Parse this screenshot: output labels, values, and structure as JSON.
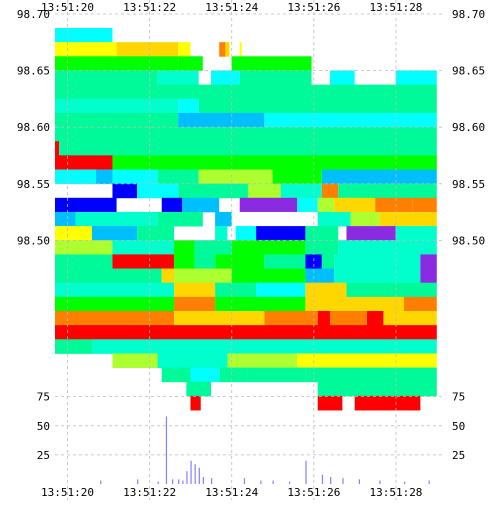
{
  "chart_data": [
    {
      "type": "heatmap",
      "title": "",
      "xlabel": "",
      "ylabel": "",
      "x_ticks": [
        "13:51:20",
        "13:51:22",
        "13:51:24",
        "13:51:26",
        "13:51:28"
      ],
      "y_ticks": [
        "98.70",
        "98.65",
        "98.60",
        "98.55",
        "98.50"
      ],
      "xlim": [
        19.5,
        29.0
      ],
      "ylim": [
        98.45,
        98.7
      ],
      "grid": true,
      "value_scale_colors": [
        "#ff0000",
        "#ff7f00",
        "#ffd700",
        "#ffff00",
        "#adff2f",
        "#00ff00",
        "#00fa9a",
        "#00ffcc",
        "#00ffff",
        "#00bfff",
        "#0000ff",
        "#8a2be2"
      ],
      "price_levels": [
        98.695,
        98.685,
        98.675,
        98.665,
        98.655,
        98.645,
        98.635,
        98.625,
        98.615,
        98.605,
        98.595,
        98.585,
        98.575,
        98.565,
        98.555,
        98.545,
        98.535,
        98.525,
        98.515,
        98.505,
        98.495,
        98.485,
        98.475,
        98.465,
        98.455
      ],
      "rows": [
        {
          "y": 98.695,
          "cells": [
            {
              "x0": 19.5,
              "x1": 20.9,
              "color": "#00ffff"
            }
          ]
        },
        {
          "y": 98.685,
          "cells": [
            {
              "x0": 19.5,
              "x1": 21.0,
              "color": "#ffff00"
            },
            {
              "x0": 21.0,
              "x1": 22.5,
              "color": "#ffd700"
            },
            {
              "x0": 22.5,
              "x1": 22.8,
              "color": "#ffff00"
            },
            {
              "x0": 23.5,
              "x1": 23.65,
              "color": "#ff7f00"
            },
            {
              "x0": 23.65,
              "x1": 23.75,
              "color": "#ffd700"
            },
            {
              "x0": 24.0,
              "x1": 24.05,
              "color": "#ffff00"
            }
          ]
        },
        {
          "y": 98.675,
          "cells": [
            {
              "x0": 19.5,
              "x1": 22.5,
              "color": "#00ff00"
            },
            {
              "x0": 22.5,
              "x1": 23.1,
              "color": "#00ff00"
            },
            {
              "x0": 23.8,
              "x1": 25.75,
              "color": "#00ff00"
            }
          ]
        },
        {
          "y": 98.665,
          "cells": [
            {
              "x0": 19.5,
              "x1": 22.0,
              "color": "#00fa9a"
            },
            {
              "x0": 22.0,
              "x1": 23.0,
              "color": "#00ffcc"
            },
            {
              "x0": 23.3,
              "x1": 24.0,
              "color": "#00ffff"
            },
            {
              "x0": 24.0,
              "x1": 25.75,
              "color": "#00fa9a"
            },
            {
              "x0": 26.2,
              "x1": 26.8,
              "color": "#00ffff"
            },
            {
              "x0": 27.8,
              "x1": 28.8,
              "color": "#00ffff"
            }
          ]
        },
        {
          "y": 98.655,
          "cells": [
            {
              "x0": 19.5,
              "x1": 28.8,
              "color": "#00fa9a"
            }
          ]
        },
        {
          "y": 98.645,
          "cells": [
            {
              "x0": 19.5,
              "x1": 22.5,
              "color": "#00ffcc"
            },
            {
              "x0": 22.5,
              "x1": 23.0,
              "color": "#00ffff"
            },
            {
              "x0": 23.0,
              "x1": 28.8,
              "color": "#00fa9a"
            }
          ]
        },
        {
          "y": 98.635,
          "cells": [
            {
              "x0": 19.5,
              "x1": 22.5,
              "color": "#00fa9a"
            },
            {
              "x0": 22.5,
              "x1": 24.6,
              "color": "#00bfff"
            },
            {
              "x0": 24.6,
              "x1": 28.8,
              "color": "#00ffff"
            }
          ]
        },
        {
          "y": 98.625,
          "cells": [
            {
              "x0": 19.5,
              "x1": 28.8,
              "color": "#00fa9a"
            }
          ]
        },
        {
          "y": 98.615,
          "cells": [
            {
              "x0": 19.5,
              "x1": 19.6,
              "color": "#ff0000"
            },
            {
              "x0": 19.6,
              "x1": 28.8,
              "color": "#00fa9a"
            }
          ]
        },
        {
          "y": 98.605,
          "cells": [
            {
              "x0": 19.5,
              "x1": 20.9,
              "color": "#ff0000"
            },
            {
              "x0": 20.9,
              "x1": 28.8,
              "color": "#00ff00"
            }
          ]
        },
        {
          "y": 98.595,
          "cells": [
            {
              "x0": 19.5,
              "x1": 20.5,
              "color": "#00ffff"
            },
            {
              "x0": 20.5,
              "x1": 20.9,
              "color": "#00bfff"
            },
            {
              "x0": 20.9,
              "x1": 22.0,
              "color": "#00ffff"
            },
            {
              "x0": 22.0,
              "x1": 23.0,
              "color": "#00fa9a"
            },
            {
              "x0": 23.0,
              "x1": 24.8,
              "color": "#adff2f"
            },
            {
              "x0": 24.8,
              "x1": 26.0,
              "color": "#00ff00"
            },
            {
              "x0": 26.0,
              "x1": 28.8,
              "color": "#00bfff"
            }
          ]
        },
        {
          "y": 98.585,
          "cells": [
            {
              "x0": 20.9,
              "x1": 21.5,
              "color": "#0000ff"
            },
            {
              "x0": 21.5,
              "x1": 22.5,
              "color": "#00ffff"
            },
            {
              "x0": 22.5,
              "x1": 24.2,
              "color": "#00fa9a"
            },
            {
              "x0": 24.2,
              "x1": 25.0,
              "color": "#adff2f"
            },
            {
              "x0": 25.0,
              "x1": 26.0,
              "color": "#00ffcc"
            },
            {
              "x0": 26.0,
              "x1": 26.4,
              "color": "#ff7f00"
            },
            {
              "x0": 26.4,
              "x1": 28.8,
              "color": "#00fa9a"
            }
          ]
        },
        {
          "y": 98.575,
          "cells": [
            {
              "x0": 19.5,
              "x1": 21.0,
              "color": "#0000ff"
            },
            {
              "x0": 22.1,
              "x1": 22.6,
              "color": "#0000ff"
            },
            {
              "x0": 22.6,
              "x1": 23.5,
              "color": "#00bfff"
            },
            {
              "x0": 24.0,
              "x1": 25.4,
              "color": "#8a2be2"
            },
            {
              "x0": 25.4,
              "x1": 25.9,
              "color": "#00ffff"
            },
            {
              "x0": 25.9,
              "x1": 26.3,
              "color": "#adff2f"
            },
            {
              "x0": 26.3,
              "x1": 27.3,
              "color": "#ffd700"
            },
            {
              "x0": 27.3,
              "x1": 28.2,
              "color": "#ff7f00"
            },
            {
              "x0": 28.2,
              "x1": 28.8,
              "color": "#ff7f00"
            }
          ]
        },
        {
          "y": 98.565,
          "cells": [
            {
              "x0": 19.5,
              "x1": 20.0,
              "color": "#00bfff"
            },
            {
              "x0": 20.0,
              "x1": 22.0,
              "color": "#00ffcc"
            },
            {
              "x0": 22.0,
              "x1": 23.1,
              "color": "#00fa9a"
            },
            {
              "x0": 23.4,
              "x1": 23.8,
              "color": "#00bfff"
            },
            {
              "x0": 24.0,
              "x1": 25.9,
              "color": "#ffffff"
            },
            {
              "x0": 25.9,
              "x1": 26.7,
              "color": "#00ffcc"
            },
            {
              "x0": 26.7,
              "x1": 27.4,
              "color": "#adff2f"
            },
            {
              "x0": 27.4,
              "x1": 28.8,
              "color": "#ffd700"
            }
          ]
        },
        {
          "y": 98.555,
          "cells": [
            {
              "x0": 19.5,
              "x1": 20.4,
              "color": "#ffff00"
            },
            {
              "x0": 20.4,
              "x1": 21.5,
              "color": "#00bfff"
            },
            {
              "x0": 21.5,
              "x1": 22.4,
              "color": "#00fa9a"
            },
            {
              "x0": 23.4,
              "x1": 23.7,
              "color": "#00ffcc"
            },
            {
              "x0": 23.9,
              "x1": 24.4,
              "color": "#00ffff"
            },
            {
              "x0": 24.4,
              "x1": 25.6,
              "color": "#0000ff"
            },
            {
              "x0": 25.6,
              "x1": 26.4,
              "color": "#00fa9a"
            },
            {
              "x0": 26.6,
              "x1": 27.8,
              "color": "#8a2be2"
            },
            {
              "x0": 27.8,
              "x1": 28.8,
              "color": "#00ffcc"
            }
          ]
        },
        {
          "y": 98.545,
          "cells": [
            {
              "x0": 19.5,
              "x1": 20.9,
              "color": "#adff2f"
            },
            {
              "x0": 20.9,
              "x1": 22.4,
              "color": "#00ffcc"
            },
            {
              "x0": 22.4,
              "x1": 22.9,
              "color": "#00ff00"
            },
            {
              "x0": 22.9,
              "x1": 23.8,
              "color": "#00fa9a"
            },
            {
              "x0": 23.8,
              "x1": 25.6,
              "color": "#00ff00"
            },
            {
              "x0": 25.6,
              "x1": 26.4,
              "color": "#00fa9a"
            },
            {
              "x0": 26.4,
              "x1": 28.8,
              "color": "#00ffcc"
            }
          ]
        },
        {
          "y": 98.535,
          "cells": [
            {
              "x0": 19.5,
              "x1": 20.9,
              "color": "#00fa9a"
            },
            {
              "x0": 20.9,
              "x1": 22.4,
              "color": "#ff0000"
            },
            {
              "x0": 22.4,
              "x1": 22.9,
              "color": "#00ff00"
            },
            {
              "x0": 22.9,
              "x1": 23.4,
              "color": "#00fa9a"
            },
            {
              "x0": 23.4,
              "x1": 24.6,
              "color": "#00ff00"
            },
            {
              "x0": 24.6,
              "x1": 25.6,
              "color": "#00fa9a"
            },
            {
              "x0": 25.6,
              "x1": 26.0,
              "color": "#0000ff"
            },
            {
              "x0": 26.0,
              "x1": 26.3,
              "color": "#00fa9a"
            },
            {
              "x0": 26.3,
              "x1": 28.4,
              "color": "#00ffcc"
            },
            {
              "x0": 28.4,
              "x1": 28.8,
              "color": "#8a2be2"
            }
          ]
        },
        {
          "y": 98.525,
          "cells": [
            {
              "x0": 19.5,
              "x1": 22.1,
              "color": "#00fa9a"
            },
            {
              "x0": 22.1,
              "x1": 22.4,
              "color": "#ffd700"
            },
            {
              "x0": 22.4,
              "x1": 23.8,
              "color": "#adff2f"
            },
            {
              "x0": 23.8,
              "x1": 25.6,
              "color": "#00ff00"
            },
            {
              "x0": 25.6,
              "x1": 26.3,
              "color": "#00bfff"
            },
            {
              "x0": 26.3,
              "x1": 28.4,
              "color": "#00ffcc"
            },
            {
              "x0": 28.4,
              "x1": 28.8,
              "color": "#8a2be2"
            }
          ]
        },
        {
          "y": 98.515,
          "cells": [
            {
              "x0": 19.5,
              "x1": 22.4,
              "color": "#00ffcc"
            },
            {
              "x0": 22.4,
              "x1": 23.4,
              "color": "#ffd700"
            },
            {
              "x0": 23.4,
              "x1": 24.4,
              "color": "#00fa9a"
            },
            {
              "x0": 24.4,
              "x1": 25.6,
              "color": "#00ffff"
            },
            {
              "x0": 25.6,
              "x1": 26.6,
              "color": "#ffd700"
            },
            {
              "x0": 26.6,
              "x1": 28.8,
              "color": "#00fa9a"
            }
          ]
        },
        {
          "y": 98.505,
          "cells": [
            {
              "x0": 19.5,
              "x1": 22.4,
              "color": "#00ff00"
            },
            {
              "x0": 22.4,
              "x1": 23.4,
              "color": "#ff7f00"
            },
            {
              "x0": 23.4,
              "x1": 25.6,
              "color": "#00ff00"
            },
            {
              "x0": 25.6,
              "x1": 28.0,
              "color": "#ffd700"
            },
            {
              "x0": 28.0,
              "x1": 28.8,
              "color": "#ff7f00"
            }
          ]
        },
        {
          "y": 98.495,
          "cells": [
            {
              "x0": 19.5,
              "x1": 22.4,
              "color": "#ff7f00"
            },
            {
              "x0": 22.4,
              "x1": 24.6,
              "color": "#ffd700"
            },
            {
              "x0": 24.6,
              "x1": 25.9,
              "color": "#ff7f00"
            },
            {
              "x0": 25.9,
              "x1": 26.2,
              "color": "#ff0000"
            },
            {
              "x0": 26.2,
              "x1": 27.1,
              "color": "#ff7f00"
            },
            {
              "x0": 27.1,
              "x1": 27.5,
              "color": "#ff0000"
            },
            {
              "x0": 27.5,
              "x1": 28.8,
              "color": "#ffd700"
            }
          ]
        },
        {
          "y": 98.485,
          "cells": [
            {
              "x0": 19.5,
              "x1": 28.8,
              "color": "#ff0000"
            }
          ]
        },
        {
          "y": 98.475,
          "cells": [
            {
              "x0": 19.5,
              "x1": 20.4,
              "color": "#00fa9a"
            },
            {
              "x0": 20.4,
              "x1": 28.8,
              "color": "#00ffcc"
            }
          ]
        },
        {
          "y": 98.465,
          "cells": [
            {
              "x0": 20.9,
              "x1": 22.0,
              "color": "#adff2f"
            },
            {
              "x0": 22.0,
              "x1": 23.7,
              "color": "#00ffcc"
            },
            {
              "x0": 23.7,
              "x1": 25.4,
              "color": "#adff2f"
            },
            {
              "x0": 25.4,
              "x1": 27.6,
              "color": "#ffff00"
            },
            {
              "x0": 27.6,
              "x1": 28.8,
              "color": "#ffff00"
            }
          ]
        },
        {
          "y": 98.455,
          "cells": [
            {
              "x0": 22.1,
              "x1": 22.8,
              "color": "#00fa9a"
            },
            {
              "x0": 22.8,
              "x1": 23.5,
              "color": "#00ffff"
            },
            {
              "x0": 23.5,
              "x1": 24.2,
              "color": "#00fa9a"
            },
            {
              "x0": 24.2,
              "x1": 25.6,
              "color": "#00fa9a"
            },
            {
              "x0": 25.6,
              "x1": 28.8,
              "color": "#00fa9a"
            }
          ]
        }
      ],
      "extra_rows": [
        {
          "row_index": 25,
          "cells": [
            {
              "x0": 22.7,
              "x1": 23.3,
              "color": "#00fa9a"
            },
            {
              "x0": 25.9,
              "x1": 28.8,
              "color": "#00fa9a"
            }
          ]
        },
        {
          "row_index": 26,
          "cells": [
            {
              "x0": 22.8,
              "x1": 23.05,
              "color": "#ff0000"
            },
            {
              "x0": 25.9,
              "x1": 26.5,
              "color": "#ff0000"
            },
            {
              "x0": 26.8,
              "x1": 28.4,
              "color": "#ff0000"
            }
          ]
        }
      ]
    },
    {
      "type": "bar",
      "title": "",
      "xlabel": "",
      "ylabel": "",
      "x_ticks": [
        "13:51:20",
        "13:51:22",
        "13:51:24",
        "13:51:26",
        "13:51:28"
      ],
      "y_ticks": [
        "75",
        "50",
        "25"
      ],
      "ylim": [
        0,
        85
      ],
      "xlim": [
        19.5,
        29.0
      ],
      "grid": true,
      "bar_color": "#8080ff",
      "x": [
        20.6,
        21.5,
        22.0,
        22.2,
        22.35,
        22.5,
        22.6,
        22.7,
        22.8,
        22.9,
        23.0,
        23.1,
        23.3,
        24.1,
        24.5,
        24.8,
        25.2,
        25.6,
        26.0,
        26.2,
        26.5,
        26.9,
        27.4,
        28.0,
        28.6
      ],
      "values": [
        3,
        4,
        2,
        58,
        4,
        4,
        3,
        11,
        20,
        17,
        14,
        6,
        5,
        5,
        3,
        3,
        2,
        20,
        8,
        6,
        5,
        4,
        3,
        2,
        3
      ]
    }
  ]
}
